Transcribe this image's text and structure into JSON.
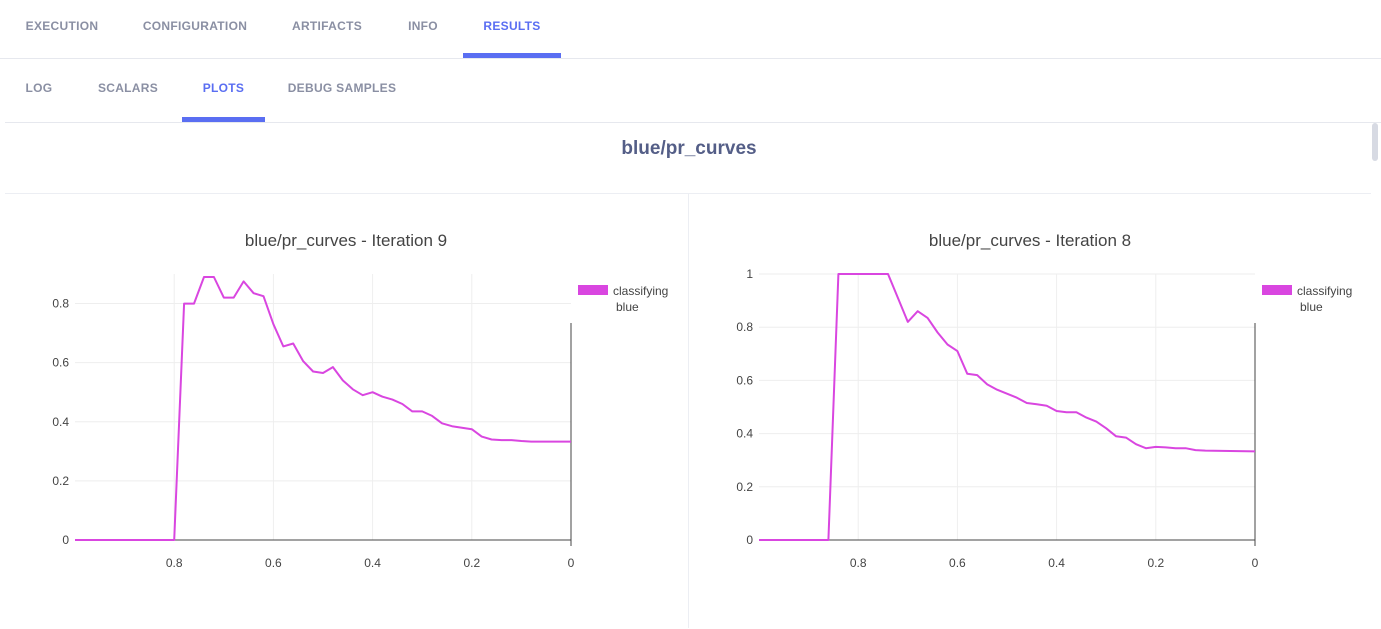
{
  "tabs": {
    "main": [
      "EXECUTION",
      "CONFIGURATION",
      "ARTIFACTS",
      "INFO",
      "RESULTS"
    ],
    "main_active": "RESULTS",
    "sub": [
      "LOG",
      "SCALARS",
      "PLOTS",
      "DEBUG SAMPLES"
    ],
    "sub_active": "PLOTS"
  },
  "section_title": "blue/pr_curves",
  "colors": {
    "accent": "#5a6ef2",
    "curve": "#d946e0"
  },
  "chart_data": [
    {
      "type": "line",
      "title": "blue/pr_curves - Iteration 9",
      "xlabel": "",
      "ylabel": "",
      "xlim": [
        1.0,
        0.0
      ],
      "ylim": [
        0.0,
        0.9
      ],
      "x_ticks": [
        "0.8",
        "0.6",
        "0.4",
        "0.2",
        "0"
      ],
      "y_ticks": [
        "0",
        "0.2",
        "0.4",
        "0.6",
        "0.8"
      ],
      "legend": [
        "classifying",
        "blue"
      ],
      "series": [
        {
          "name": "classifying blue",
          "x": [
            1.0,
            0.8,
            0.78,
            0.76,
            0.74,
            0.72,
            0.7,
            0.68,
            0.66,
            0.64,
            0.62,
            0.6,
            0.58,
            0.56,
            0.54,
            0.52,
            0.5,
            0.48,
            0.46,
            0.44,
            0.42,
            0.4,
            0.38,
            0.36,
            0.34,
            0.32,
            0.3,
            0.28,
            0.26,
            0.24,
            0.22,
            0.2,
            0.18,
            0.16,
            0.14,
            0.12,
            0.1,
            0.08,
            0.0
          ],
          "y": [
            0.0,
            0.0,
            0.8,
            0.8,
            0.89,
            0.89,
            0.82,
            0.82,
            0.875,
            0.835,
            0.825,
            0.73,
            0.655,
            0.665,
            0.605,
            0.57,
            0.565,
            0.585,
            0.54,
            0.51,
            0.49,
            0.5,
            0.485,
            0.475,
            0.46,
            0.435,
            0.435,
            0.42,
            0.395,
            0.385,
            0.38,
            0.375,
            0.35,
            0.34,
            0.338,
            0.338,
            0.335,
            0.333,
            0.333
          ]
        }
      ]
    },
    {
      "type": "line",
      "title": "blue/pr_curves - Iteration 8",
      "xlabel": "",
      "ylabel": "",
      "xlim": [
        1.0,
        0.0
      ],
      "ylim": [
        0.0,
        1.0
      ],
      "x_ticks": [
        "0.8",
        "0.6",
        "0.4",
        "0.2",
        "0"
      ],
      "y_ticks": [
        "0",
        "0.2",
        "0.4",
        "0.6",
        "0.8",
        "1"
      ],
      "legend": [
        "classifying",
        "blue"
      ],
      "series": [
        {
          "name": "classifying blue",
          "x": [
            1.0,
            0.86,
            0.84,
            0.82,
            0.8,
            0.78,
            0.76,
            0.74,
            0.72,
            0.7,
            0.68,
            0.66,
            0.64,
            0.62,
            0.6,
            0.58,
            0.56,
            0.54,
            0.52,
            0.5,
            0.48,
            0.46,
            0.44,
            0.42,
            0.4,
            0.38,
            0.36,
            0.34,
            0.32,
            0.3,
            0.28,
            0.26,
            0.24,
            0.22,
            0.2,
            0.18,
            0.16,
            0.14,
            0.12,
            0.1,
            0.0
          ],
          "y": [
            0.0,
            0.0,
            1.0,
            1.0,
            1.0,
            1.0,
            1.0,
            1.0,
            0.91,
            0.82,
            0.86,
            0.835,
            0.78,
            0.735,
            0.71,
            0.625,
            0.62,
            0.585,
            0.565,
            0.55,
            0.535,
            0.515,
            0.51,
            0.505,
            0.485,
            0.48,
            0.48,
            0.46,
            0.445,
            0.42,
            0.39,
            0.385,
            0.36,
            0.345,
            0.35,
            0.348,
            0.345,
            0.345,
            0.338,
            0.336,
            0.333
          ]
        }
      ]
    }
  ]
}
